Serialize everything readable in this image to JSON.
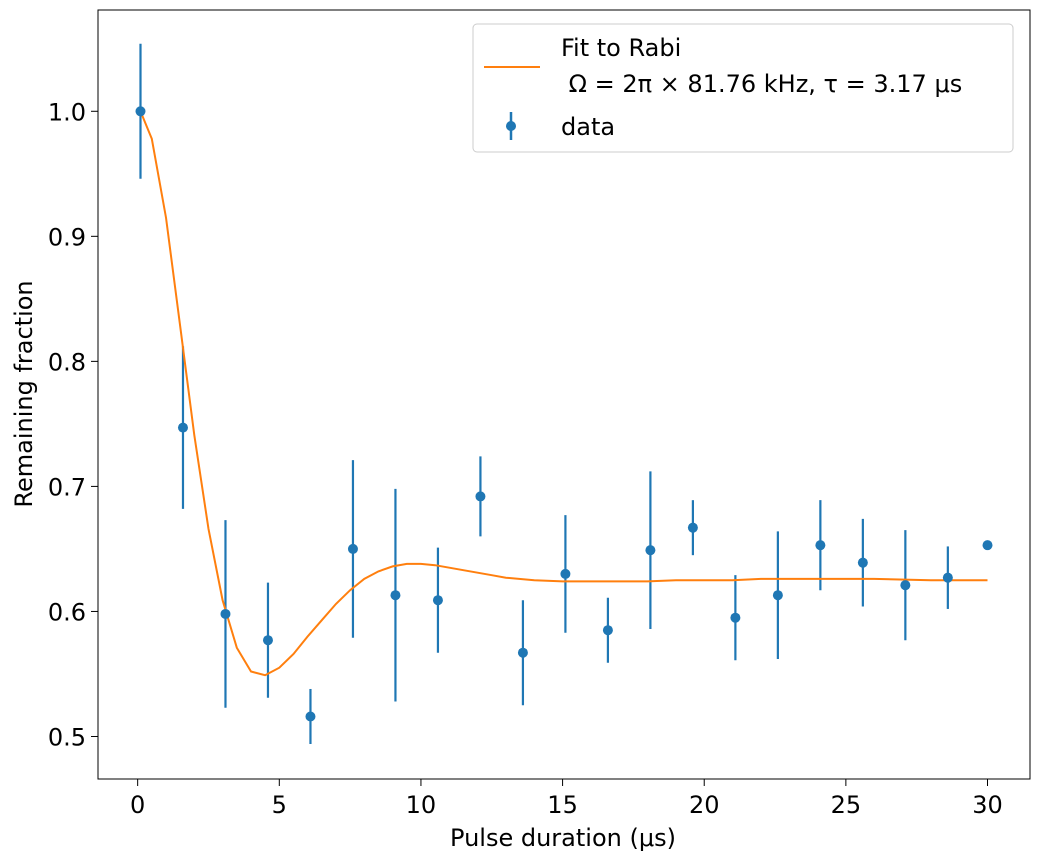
{
  "chart_data": {
    "type": "scatter",
    "xlabel": "Pulse duration (μs)",
    "ylabel": "Remaining fraction",
    "xlim": [
      -1.4,
      31.5
    ],
    "ylim": [
      0.466,
      1.081
    ],
    "xticks": [
      "0",
      "5",
      "10",
      "15",
      "20",
      "25",
      "30"
    ],
    "yticks": [
      "0.5",
      "0.6",
      "0.7",
      "0.8",
      "0.9",
      "1.0"
    ],
    "grid": false,
    "legend_position": "top-right",
    "colors": {
      "data": "#1f77b4",
      "fit": "#ff7f0e"
    },
    "series": [
      {
        "name": "data",
        "kind": "errorbar",
        "x": [
          0.1,
          1.6,
          3.1,
          4.6,
          6.1,
          7.6,
          9.1,
          10.6,
          12.1,
          13.6,
          15.1,
          16.6,
          18.1,
          19.6,
          21.1,
          22.6,
          24.1,
          25.6,
          27.1,
          28.6,
          30.0
        ],
        "y": [
          1.0,
          0.747,
          0.598,
          0.577,
          0.516,
          0.65,
          0.613,
          0.609,
          0.692,
          0.567,
          0.63,
          0.585,
          0.649,
          0.667,
          0.595,
          0.613,
          0.653,
          0.639,
          0.621,
          0.627,
          0.653
        ],
        "yerr": [
          0.054,
          0.065,
          0.075,
          0.046,
          0.022,
          0.071,
          0.085,
          0.042,
          0.032,
          0.042,
          0.047,
          0.026,
          0.063,
          0.022,
          0.034,
          0.051,
          0.036,
          0.035,
          0.044,
          0.025,
          0.0
        ]
      },
      {
        "name_line1": "Fit to Rabi",
        "name_line2": " Ω = 2π × 81.76 kHz, τ = 3.17 μs",
        "kind": "line",
        "x": [
          0.1,
          0.5,
          1.0,
          1.5,
          2.0,
          2.5,
          3.0,
          3.5,
          4.0,
          4.5,
          5.0,
          5.5,
          6.0,
          6.5,
          7.0,
          7.5,
          8.0,
          8.5,
          9.0,
          9.5,
          10.0,
          10.5,
          11.0,
          11.5,
          12.0,
          12.5,
          13.0,
          14.0,
          15.0,
          16.0,
          17.0,
          18.0,
          19.0,
          20.0,
          21.0,
          22.0,
          24.0,
          26.0,
          28.0,
          30.0
        ],
        "y": [
          1.0,
          0.978,
          0.915,
          0.828,
          0.741,
          0.666,
          0.609,
          0.571,
          0.552,
          0.549,
          0.555,
          0.566,
          0.58,
          0.593,
          0.606,
          0.617,
          0.626,
          0.632,
          0.636,
          0.638,
          0.638,
          0.637,
          0.635,
          0.633,
          0.631,
          0.629,
          0.627,
          0.625,
          0.624,
          0.624,
          0.624,
          0.624,
          0.625,
          0.625,
          0.625,
          0.626,
          0.626,
          0.626,
          0.625,
          0.625
        ]
      }
    ]
  }
}
